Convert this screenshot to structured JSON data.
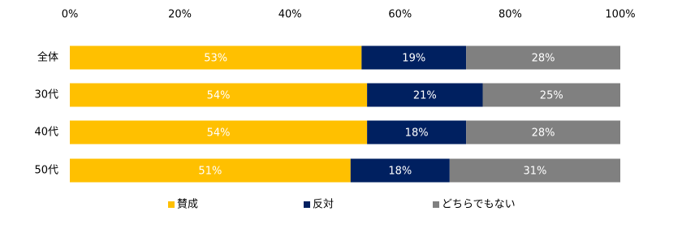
{
  "chart_data": {
    "type": "stacked-bar-horizontal",
    "categories": [
      "全体",
      "30代",
      "40代",
      "50代"
    ],
    "series": [
      {
        "name": "賛成",
        "color": "#ffc000",
        "values": [
          53,
          54,
          54,
          51
        ],
        "value_labels": [
          "53%",
          "54%",
          "54%",
          "51%"
        ]
      },
      {
        "name": "反対",
        "color": "#002060",
        "values": [
          19,
          21,
          18,
          18
        ],
        "value_labels": [
          "19%",
          "21%",
          "18%",
          "18%"
        ]
      },
      {
        "name": "どちらでもない",
        "color": "#808080",
        "values": [
          28,
          25,
          28,
          31
        ],
        "value_labels": [
          "28%",
          "25%",
          "28%",
          "31%"
        ]
      }
    ],
    "xlim": [
      0,
      100
    ],
    "xticks": [
      {
        "value": 0,
        "label": "0%"
      },
      {
        "value": 20,
        "label": "20%"
      },
      {
        "value": 40,
        "label": "40%"
      },
      {
        "value": 60,
        "label": "60%"
      },
      {
        "value": 80,
        "label": "80%"
      },
      {
        "value": 100,
        "label": "100%"
      }
    ],
    "grid": false,
    "legend": "bottom"
  }
}
